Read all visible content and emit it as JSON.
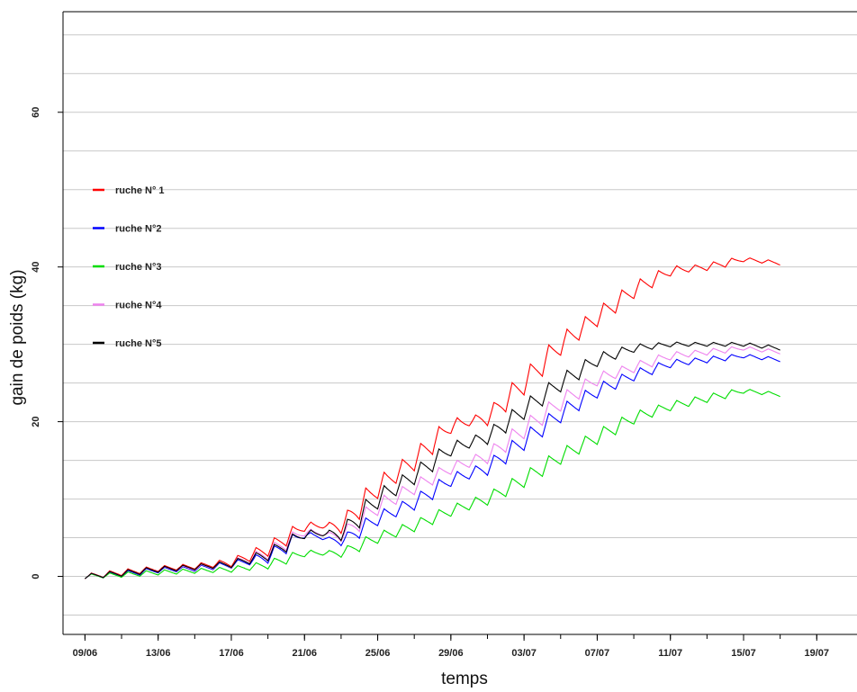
{
  "chart_data": {
    "type": "line",
    "title": "",
    "xlabel": "temps",
    "ylabel": "gain de poids (kg)",
    "x_tick_labels": [
      "09/06",
      "13/06",
      "17/06",
      "21/06",
      "25/06",
      "29/06",
      "03/07",
      "07/07",
      "11/07",
      "15/07",
      "19/07"
    ],
    "x_range": [
      "08/06",
      "21/07"
    ],
    "y_tick_labels": [
      "0",
      "20",
      "40",
      "60"
    ],
    "ylim": [
      -7.5,
      73
    ],
    "grid": "horizontal",
    "legend_position": "left",
    "series": [
      {
        "name": "ruche N° 1",
        "color": "#ff0000",
        "x": [
          "09/06",
          "11/06",
          "13/06",
          "15/06",
          "17/06",
          "19/06",
          "21/06",
          "23/06",
          "25/06",
          "27/06",
          "29/06",
          "01/07",
          "03/07",
          "05/07",
          "07/07",
          "09/07",
          "11/07",
          "13/07",
          "15/07",
          "17/07"
        ],
        "y": [
          0.0,
          0.5,
          1.0,
          1.3,
          1.8,
          3.5,
          6.5,
          6.5,
          11.5,
          15.0,
          19.5,
          20.5,
          25.0,
          30.0,
          33.5,
          37.0,
          39.5,
          40.0,
          41.0,
          40.5
        ]
      },
      {
        "name": "ruche N°2",
        "color": "#0000ff",
        "x": [
          "09/06",
          "11/06",
          "13/06",
          "15/06",
          "17/06",
          "19/06",
          "21/06",
          "23/06",
          "25/06",
          "27/06",
          "29/06",
          "01/07",
          "03/07",
          "05/07",
          "07/07",
          "09/07",
          "11/07",
          "13/07",
          "15/07",
          "17/07"
        ],
        "y": [
          0.0,
          0.3,
          0.8,
          1.0,
          1.5,
          2.5,
          5.5,
          4.5,
          7.5,
          9.5,
          12.5,
          14.0,
          17.5,
          21.0,
          24.0,
          26.0,
          27.5,
          28.0,
          28.5,
          28.0
        ]
      },
      {
        "name": "ruche N°3",
        "color": "#00dd00",
        "x": [
          "09/06",
          "11/06",
          "13/06",
          "15/06",
          "17/06",
          "19/06",
          "21/06",
          "23/06",
          "25/06",
          "27/06",
          "29/06",
          "01/07",
          "03/07",
          "05/07",
          "07/07",
          "09/07",
          "11/07",
          "13/07",
          "15/07",
          "17/07"
        ],
        "y": [
          0.0,
          0.2,
          0.5,
          0.7,
          0.9,
          1.5,
          3.0,
          3.0,
          5.0,
          6.5,
          8.5,
          10.0,
          12.5,
          15.5,
          18.0,
          20.5,
          22.0,
          23.0,
          24.0,
          23.5
        ]
      },
      {
        "name": "ruche N°4",
        "color": "#ee82ee",
        "x": [
          "09/06",
          "11/06",
          "13/06",
          "15/06",
          "17/06",
          "19/06",
          "21/06",
          "23/06",
          "25/06",
          "27/06",
          "29/06",
          "01/07",
          "03/07",
          "05/07",
          "07/07",
          "09/07",
          "11/07",
          "13/07",
          "15/07",
          "17/07"
        ],
        "y": [
          0.0,
          0.4,
          0.9,
          1.1,
          1.6,
          3.0,
          5.8,
          5.2,
          9.0,
          11.5,
          14.0,
          15.5,
          19.0,
          22.5,
          25.5,
          27.0,
          28.5,
          29.0,
          29.5,
          29.0
        ]
      },
      {
        "name": "ruche N°5",
        "color": "#000000",
        "x": [
          "09/06",
          "11/06",
          "13/06",
          "15/06",
          "17/06",
          "19/06",
          "21/06",
          "23/06",
          "25/06",
          "27/06",
          "29/06",
          "01/07",
          "03/07",
          "05/07",
          "07/07",
          "09/07",
          "11/07",
          "13/07",
          "15/07",
          "17/07"
        ],
        "y": [
          0.0,
          0.4,
          0.9,
          1.2,
          1.6,
          2.8,
          5.5,
          5.5,
          10.0,
          13.0,
          16.5,
          18.0,
          21.5,
          25.0,
          28.0,
          29.5,
          30.0,
          30.0,
          30.0,
          29.5
        ]
      }
    ]
  }
}
